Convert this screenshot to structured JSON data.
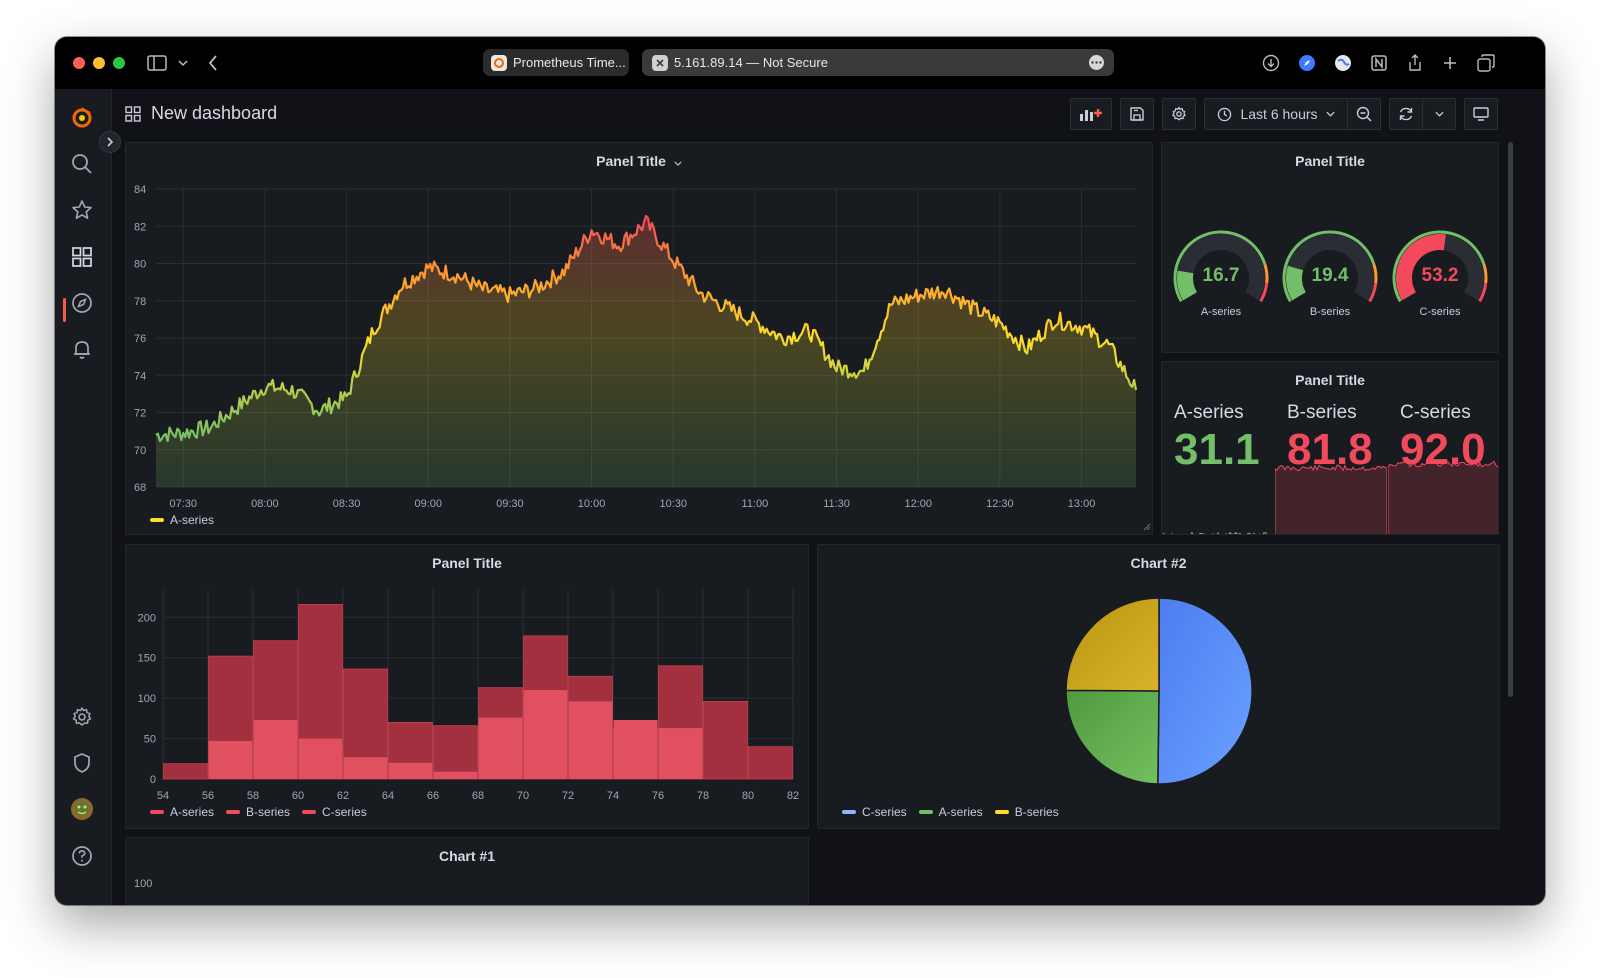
{
  "browser": {
    "tabs": [
      {
        "label": "Prometheus Time..."
      },
      {
        "label": "5.161.89.14 — Not Secure"
      }
    ]
  },
  "dashboard": {
    "title": "New dashboard",
    "time_range": "Last 6 hours"
  },
  "colors": {
    "accent": "#f55f3e",
    "green": "#73bf69",
    "red": "#f2495c",
    "yellow": "#fade2a",
    "blue": "#5794f2",
    "ochre": "#e0b400"
  },
  "panels": {
    "timeseries": {
      "title": "Panel Title",
      "legend": [
        "A-series"
      ]
    },
    "gauges": {
      "title": "Panel Title",
      "items": [
        {
          "label": "A-series",
          "value": "16.7",
          "color": "#73bf69"
        },
        {
          "label": "B-series",
          "value": "19.4",
          "color": "#73bf69"
        },
        {
          "label": "C-series",
          "value": "53.2",
          "color": "#f2495c"
        }
      ]
    },
    "stats": {
      "title": "Panel Title",
      "items": [
        {
          "label": "A-series",
          "value": "31.1",
          "color": "#73bf69"
        },
        {
          "label": "B-series",
          "value": "81.8",
          "color": "#f2495c"
        },
        {
          "label": "C-series",
          "value": "92.0",
          "color": "#f2495c"
        }
      ]
    },
    "histogram": {
      "title": "Panel Title",
      "legend": [
        "A-series",
        "B-series",
        "C-series"
      ]
    },
    "pie": {
      "title": "Chart #2",
      "legend": [
        "C-series",
        "A-series",
        "B-series"
      ]
    },
    "chart1": {
      "title": "Chart #1",
      "first_tick": "100"
    }
  },
  "chart_data": [
    {
      "type": "area",
      "title": "Panel Title",
      "x_ticks": [
        "07:30",
        "08:00",
        "08:30",
        "09:00",
        "09:30",
        "10:00",
        "10:30",
        "11:00",
        "11:30",
        "12:00",
        "12:30",
        "13:00"
      ],
      "y_ticks": [
        68,
        70,
        72,
        74,
        76,
        78,
        80,
        82,
        84
      ],
      "ylim": [
        68,
        84
      ],
      "series": [
        {
          "name": "A-series",
          "x": [
            "07:20",
            "07:30",
            "07:40",
            "07:50",
            "08:00",
            "08:10",
            "08:20",
            "08:30",
            "08:40",
            "08:50",
            "09:00",
            "09:10",
            "09:20",
            "09:30",
            "09:40",
            "09:50",
            "10:00",
            "10:10",
            "10:20",
            "10:30",
            "10:40",
            "10:50",
            "11:00",
            "11:10",
            "11:20",
            "11:30",
            "11:40",
            "11:50",
            "12:00",
            "12:10",
            "12:20",
            "12:30",
            "12:40",
            "12:50",
            "13:00",
            "13:10",
            "13:20"
          ],
          "values": [
            70.8,
            70.9,
            71.2,
            72.3,
            73.4,
            73.2,
            72.1,
            72.8,
            76.5,
            78.8,
            79.8,
            79.4,
            78.6,
            78.3,
            78.7,
            79.6,
            81.8,
            81.0,
            82.2,
            80.2,
            78.4,
            77.6,
            76.9,
            76.0,
            76.4,
            74.4,
            74.2,
            77.8,
            78.3,
            78.6,
            77.6,
            76.8,
            75.4,
            77.0,
            76.6,
            75.6,
            73.2
          ]
        }
      ]
    },
    {
      "type": "gauge",
      "title": "Panel Title",
      "categories": [
        "A-series",
        "B-series",
        "C-series"
      ],
      "values": [
        16.7,
        19.4,
        53.2
      ],
      "range": [
        0,
        100
      ]
    },
    {
      "type": "stat",
      "title": "Panel Title",
      "categories": [
        "A-series",
        "B-series",
        "C-series"
      ],
      "values": [
        31.1,
        81.8,
        92.0
      ]
    },
    {
      "type": "bar",
      "title": "Panel Title",
      "x_ticks": [
        54,
        56,
        58,
        60,
        62,
        64,
        66,
        68,
        70,
        72,
        74,
        76,
        78,
        80,
        82
      ],
      "y_ticks": [
        0,
        50,
        100,
        150,
        200
      ],
      "ylim": [
        0,
        235
      ],
      "bins": [
        54,
        56,
        58,
        60,
        62,
        64,
        66,
        68,
        70,
        72,
        74,
        76,
        78,
        80
      ],
      "series": [
        {
          "name": "A-series",
          "values": [
            0,
            47,
            73,
            50,
            27,
            20,
            9,
            76,
            110,
            96,
            73,
            63,
            0,
            0
          ]
        },
        {
          "name": "B-series",
          "values": [
            0,
            0,
            0,
            0,
            0,
            0,
            0,
            0,
            0,
            0,
            0,
            0,
            0,
            0
          ]
        },
        {
          "name": "C-series",
          "values": [
            19,
            152,
            171,
            216,
            136,
            70,
            66,
            113,
            177,
            127,
            63,
            140,
            96,
            40
          ]
        }
      ]
    },
    {
      "type": "pie",
      "title": "Chart #2",
      "categories": [
        "C-series",
        "A-series",
        "B-series"
      ],
      "values": [
        50.2,
        24.9,
        24.9
      ]
    }
  ]
}
